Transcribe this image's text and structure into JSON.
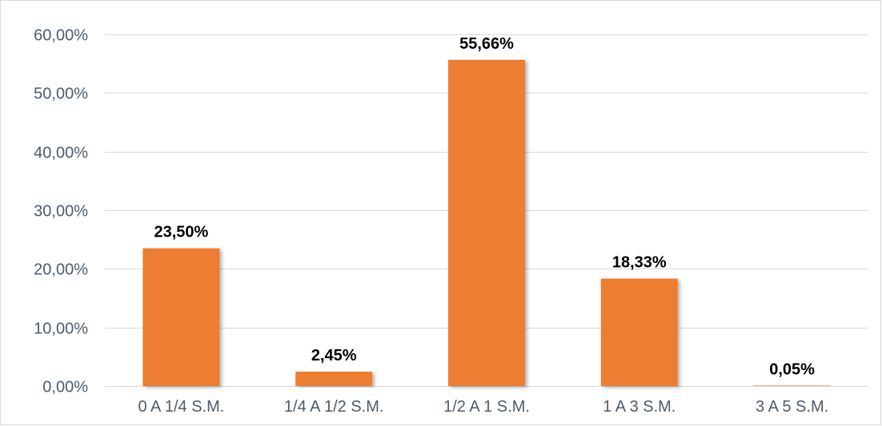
{
  "chart_data": {
    "type": "bar",
    "title": "",
    "xlabel": "",
    "ylabel": "",
    "categories": [
      "0 A 1/4 S.M.",
      "1/4 A 1/2 S.M.",
      "1/2 A 1 S.M.",
      "1 A 3 S.M.",
      "3 A 5 S.M."
    ],
    "values": [
      23.5,
      2.45,
      55.66,
      18.33,
      0.05
    ],
    "data_labels": [
      "23,50%",
      "2,45%",
      "55,66%",
      "18,33%",
      "0,05%"
    ],
    "ylim": [
      0,
      60
    ],
    "yticks": [
      0,
      10,
      20,
      30,
      40,
      50,
      60
    ],
    "ytick_labels": [
      "0,00%",
      "10,00%",
      "20,00%",
      "30,00%",
      "40,00%",
      "50,00%",
      "60,00%"
    ],
    "grid": true,
    "legend": "none",
    "bar_color": "#ED7D31",
    "grid_color": "#D9D9D9",
    "tick_color": "#4D5B6B"
  }
}
